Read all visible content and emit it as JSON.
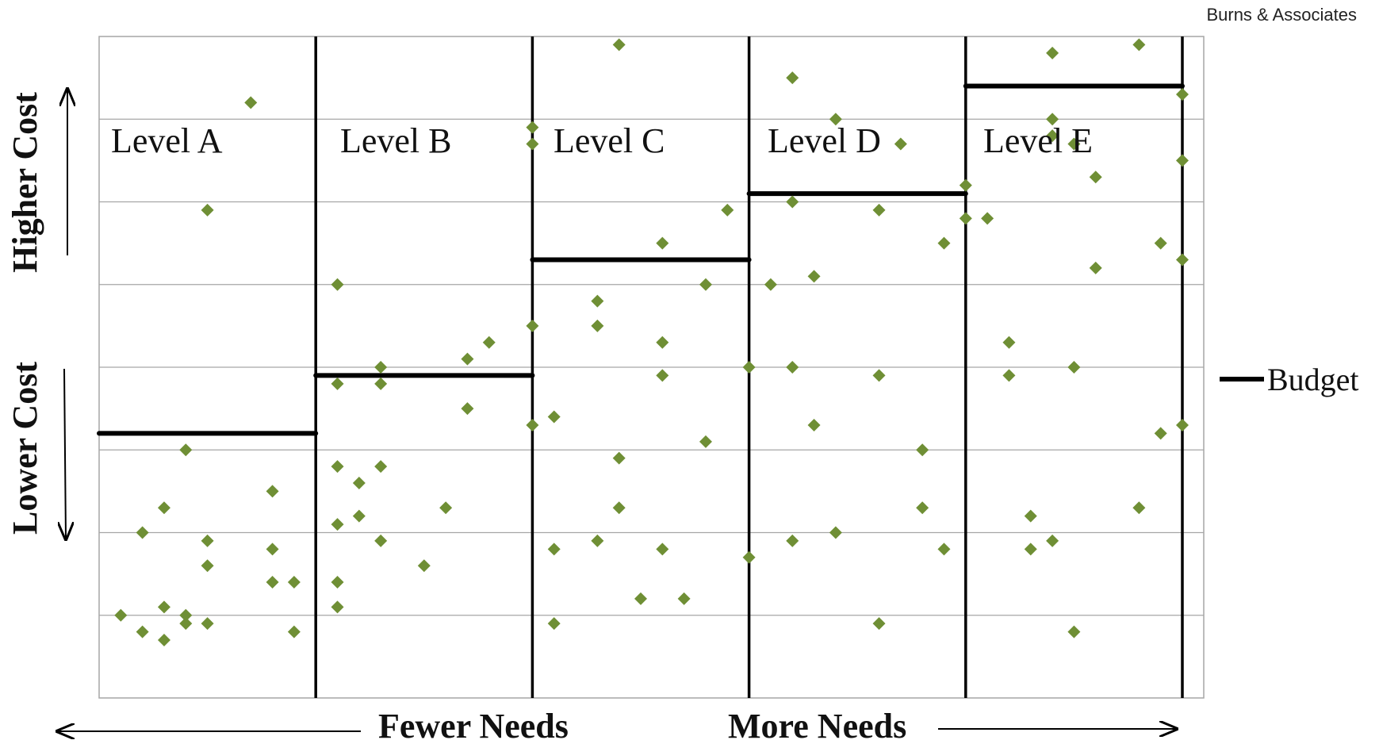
{
  "credit": "Burns & Associates",
  "colors": {
    "point": "#6f8f35",
    "budget": "#000000",
    "grid": "#a6a6a6",
    "divider": "#000000"
  },
  "chart_data": {
    "type": "scatter",
    "xlim": [
      0,
      10
    ],
    "ylim": [
      0,
      8
    ],
    "grid": "horizontal",
    "legend_position": "right",
    "levels": [
      {
        "name": "Level A",
        "x_range": [
          0,
          2
        ]
      },
      {
        "name": "Level B",
        "x_range": [
          2,
          4
        ]
      },
      {
        "name": "Level C",
        "x_range": [
          4,
          6
        ]
      },
      {
        "name": "Level D",
        "x_range": [
          6,
          8
        ]
      },
      {
        "name": "Level E",
        "x_range": [
          8,
          10
        ]
      }
    ],
    "budget": {
      "label": "Budget",
      "values": [
        3.2,
        3.9,
        5.3,
        6.1,
        7.4
      ]
    },
    "points": [
      [
        1.4,
        7.2
      ],
      [
        1.0,
        5.9
      ],
      [
        0.8,
        3.0
      ],
      [
        0.6,
        2.3
      ],
      [
        0.4,
        2.0
      ],
      [
        1.0,
        1.9
      ],
      [
        1.0,
        1.6
      ],
      [
        1.6,
        2.5
      ],
      [
        1.6,
        1.8
      ],
      [
        1.6,
        1.4
      ],
      [
        1.8,
        1.4
      ],
      [
        0.6,
        1.1
      ],
      [
        0.8,
        1.0
      ],
      [
        0.2,
        1.0
      ],
      [
        0.4,
        0.8
      ],
      [
        1.8,
        0.8
      ],
      [
        0.6,
        0.7
      ],
      [
        0.8,
        0.9
      ],
      [
        1.0,
        0.9
      ],
      [
        2.2,
        5.0
      ],
      [
        2.6,
        4.0
      ],
      [
        2.2,
        3.8
      ],
      [
        2.6,
        3.8
      ],
      [
        3.4,
        4.1
      ],
      [
        3.6,
        4.3
      ],
      [
        3.4,
        3.5
      ],
      [
        2.2,
        2.8
      ],
      [
        2.6,
        2.8
      ],
      [
        2.4,
        2.6
      ],
      [
        3.2,
        2.3
      ],
      [
        2.4,
        2.2
      ],
      [
        2.2,
        2.1
      ],
      [
        2.6,
        1.9
      ],
      [
        3.0,
        1.6
      ],
      [
        2.2,
        1.4
      ],
      [
        2.2,
        1.1
      ],
      [
        4.8,
        7.9
      ],
      [
        4.0,
        6.9
      ],
      [
        4.0,
        6.7
      ],
      [
        5.2,
        5.5
      ],
      [
        5.8,
        5.9
      ],
      [
        5.6,
        5.0
      ],
      [
        4.6,
        4.8
      ],
      [
        4.6,
        4.5
      ],
      [
        4.0,
        4.5
      ],
      [
        5.2,
        4.3
      ],
      [
        5.2,
        3.9
      ],
      [
        4.2,
        3.4
      ],
      [
        4.0,
        3.3
      ],
      [
        5.6,
        3.1
      ],
      [
        4.8,
        2.9
      ],
      [
        4.8,
        2.3
      ],
      [
        4.2,
        1.8
      ],
      [
        4.6,
        1.9
      ],
      [
        5.2,
        1.8
      ],
      [
        5.0,
        1.2
      ],
      [
        5.4,
        1.2
      ],
      [
        4.2,
        0.9
      ],
      [
        6.4,
        7.5
      ],
      [
        6.8,
        7.0
      ],
      [
        7.4,
        6.7
      ],
      [
        6.4,
        6.0
      ],
      [
        7.2,
        5.9
      ],
      [
        7.8,
        5.5
      ],
      [
        6.2,
        5.0
      ],
      [
        6.6,
        5.1
      ],
      [
        6.0,
        4.0
      ],
      [
        6.4,
        4.0
      ],
      [
        7.2,
        3.9
      ],
      [
        6.6,
        3.3
      ],
      [
        7.6,
        3.0
      ],
      [
        7.6,
        2.3
      ],
      [
        6.4,
        1.9
      ],
      [
        6.8,
        2.0
      ],
      [
        7.8,
        1.8
      ],
      [
        6.0,
        1.7
      ],
      [
        7.2,
        0.9
      ],
      [
        8.8,
        7.8
      ],
      [
        9.6,
        7.9
      ],
      [
        10.0,
        7.3
      ],
      [
        8.8,
        7.0
      ],
      [
        8.8,
        6.8
      ],
      [
        9.0,
        6.7
      ],
      [
        10.0,
        6.5
      ],
      [
        9.2,
        6.3
      ],
      [
        8.0,
        6.2
      ],
      [
        8.0,
        5.8
      ],
      [
        8.2,
        5.8
      ],
      [
        9.8,
        5.5
      ],
      [
        10.0,
        5.3
      ],
      [
        9.2,
        5.2
      ],
      [
        8.4,
        4.3
      ],
      [
        8.4,
        3.9
      ],
      [
        9.0,
        4.0
      ],
      [
        10.0,
        3.3
      ],
      [
        9.8,
        3.2
      ],
      [
        8.6,
        2.2
      ],
      [
        9.6,
        2.3
      ],
      [
        8.6,
        1.8
      ],
      [
        8.8,
        1.9
      ],
      [
        9.0,
        0.8
      ]
    ],
    "y_axis_titles": {
      "top": "Higher Cost",
      "bottom": "Lower Cost"
    },
    "x_axis_titles": {
      "left": "Fewer Needs",
      "right": "More Needs"
    }
  }
}
